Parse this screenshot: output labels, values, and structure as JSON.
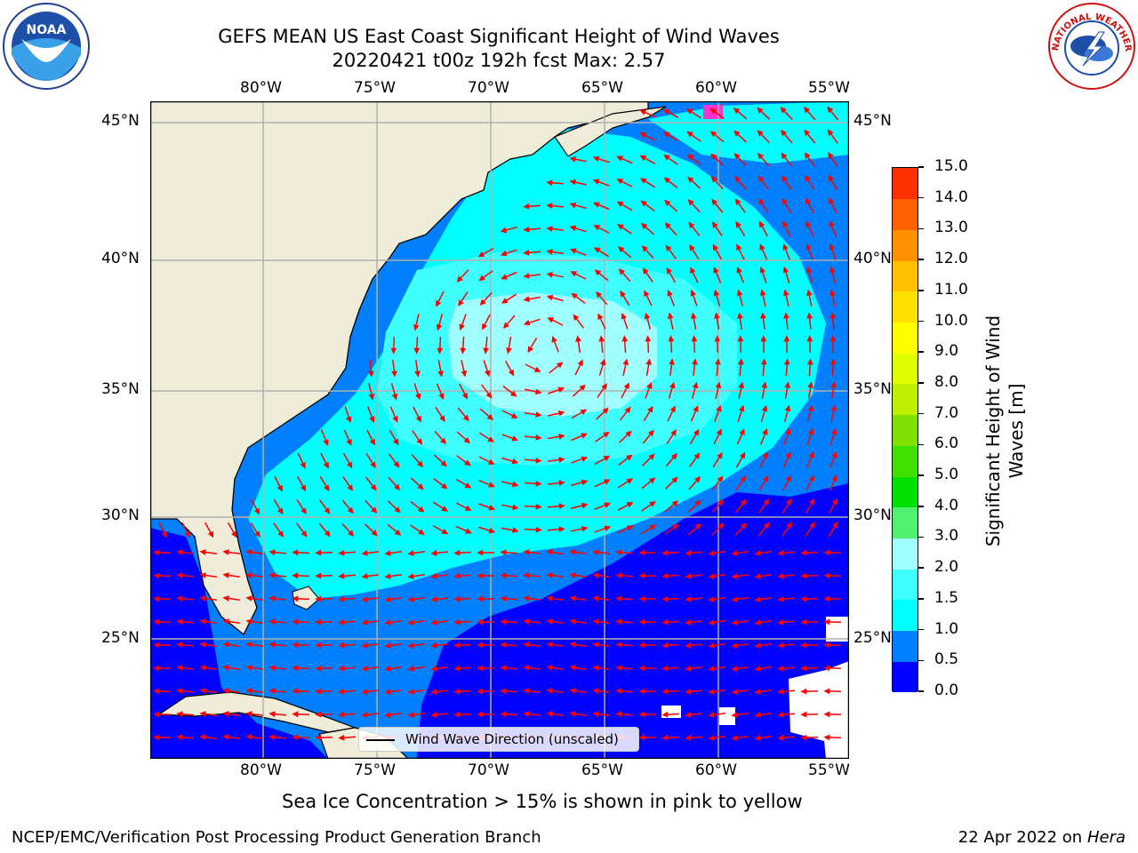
{
  "header": {
    "title_line1": "GEFS MEAN US East Coast Significant Height of Wind Waves",
    "title_line2": "20220421 t00z 192h fcst   Max: 2.57"
  },
  "logos": {
    "left": {
      "icon": "noaa-logo-icon",
      "text": "NOAA"
    },
    "right": {
      "icon": "nws-logo-icon",
      "text": "NATIONAL WEATHER SERVICE"
    }
  },
  "map": {
    "lon_labels": [
      "80°W",
      "75°W",
      "70°W",
      "65°W",
      "60°W",
      "55°W"
    ],
    "lat_labels": [
      "45°N",
      "40°N",
      "35°N",
      "30°N",
      "25°N"
    ],
    "legend_label": "Wind Wave Direction (unscaled)",
    "colors": {
      "land": "#efedda",
      "sea_ice": "#ff33cc",
      "arrows": "#ff0000",
      "grid": "#b0b0b0"
    }
  },
  "colorbar": {
    "label_line1": "Significant Height of Wind",
    "label_line2": "Waves [m]",
    "ticks": [
      "0.0",
      "0.5",
      "1.0",
      "1.5",
      "2.0",
      "3.0",
      "4.0",
      "5.0",
      "6.0",
      "7.0",
      "8.0",
      "9.0",
      "10.0",
      "11.0",
      "12.0",
      "13.0",
      "14.0",
      "15.0"
    ],
    "colors": [
      "#0000ff",
      "#0080ff",
      "#00ffff",
      "#40ffff",
      "#a0ffff",
      "#50f070",
      "#00e000",
      "#40e000",
      "#80e000",
      "#c0f000",
      "#e0ff00",
      "#ffff00",
      "#ffe000",
      "#ffc000",
      "#ff9000",
      "#ff6000",
      "#ff3000"
    ]
  },
  "footer": {
    "note": "Sea Ice Concentration > 15% is shown in pink to yellow",
    "credit": "NCEP/EMC/Verification Post Processing Product Generation Branch",
    "date": "22 Apr 2022 on ",
    "host": "Hera"
  }
}
